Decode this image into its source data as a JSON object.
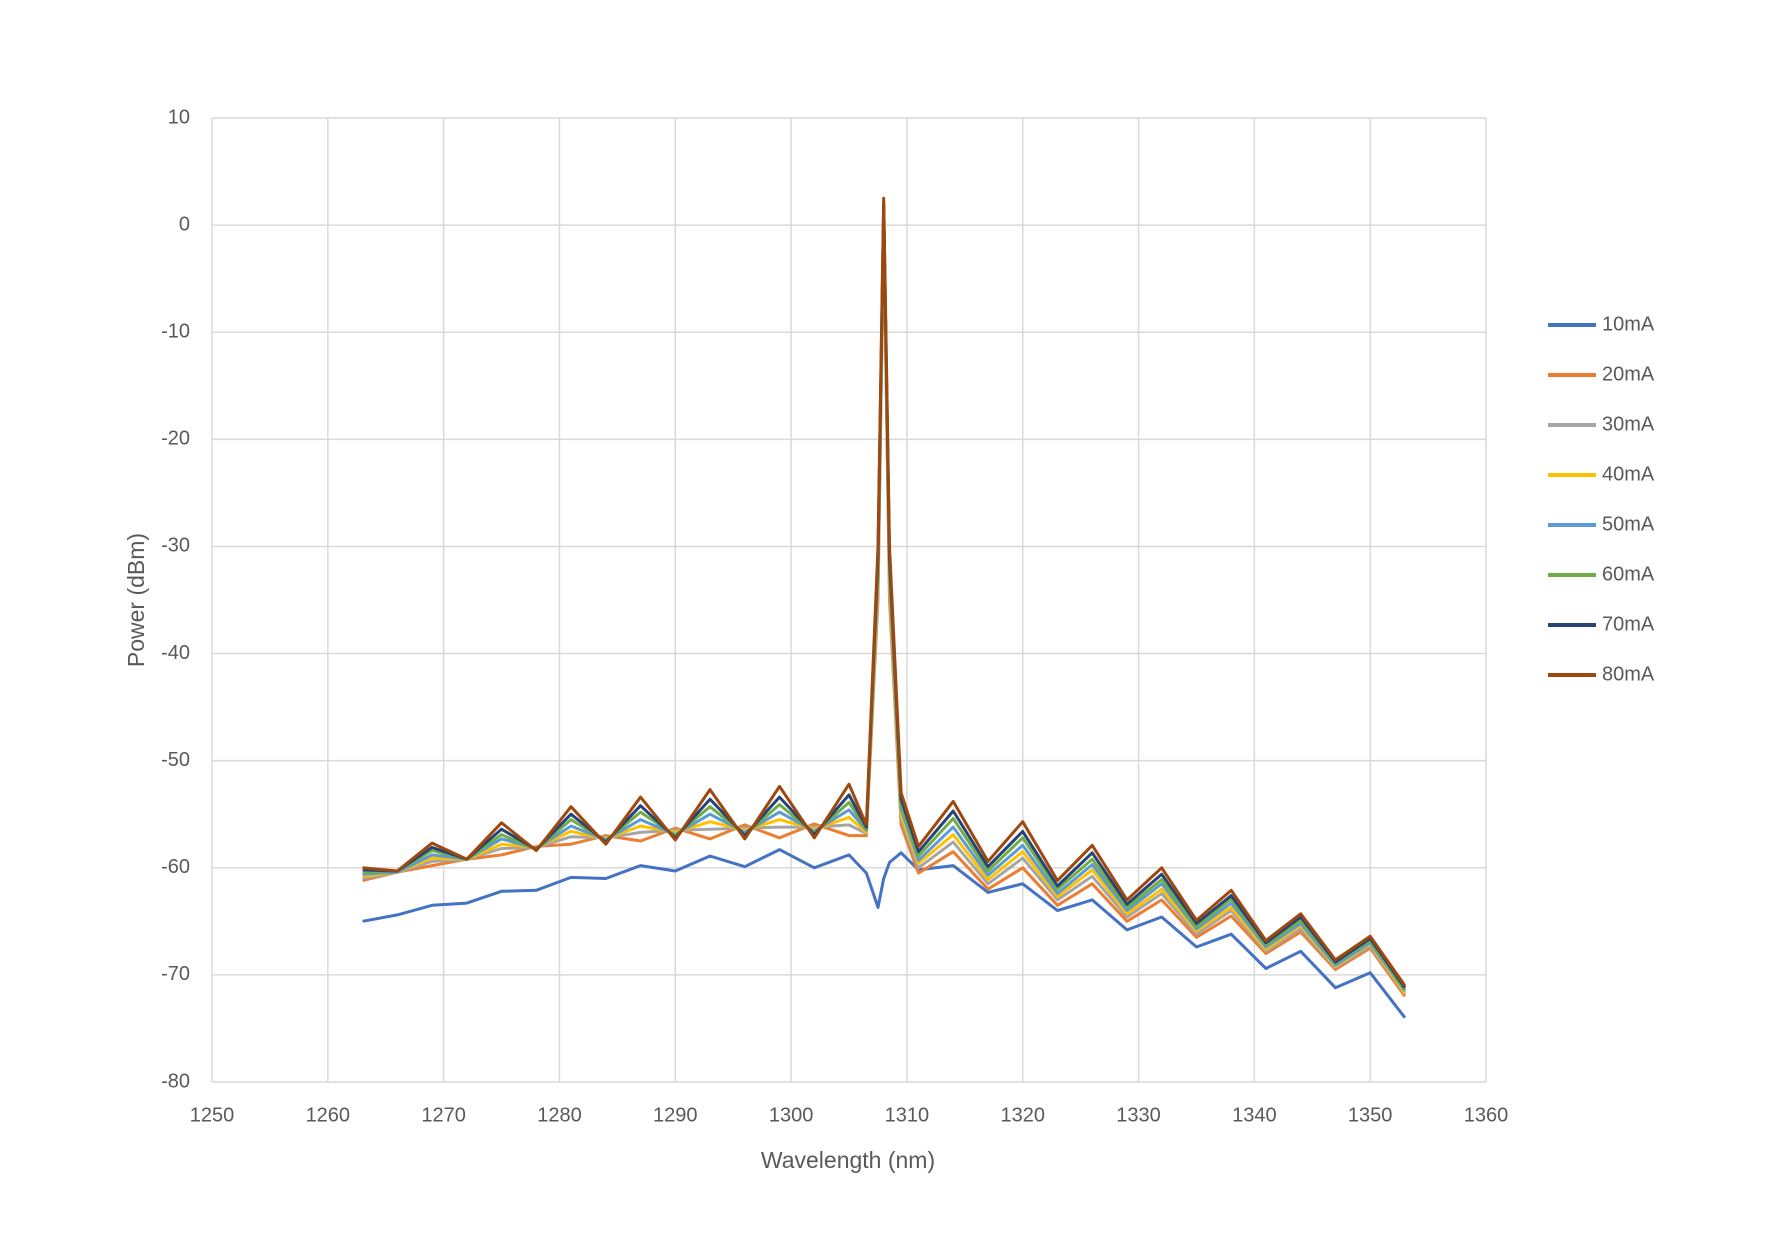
{
  "chart_data": {
    "type": "line",
    "x_label": "Wavelength (nm)",
    "y_label": "Power (dBm)",
    "x": [
      1263,
      1266,
      1269,
      1272,
      1275,
      1278,
      1281,
      1284,
      1287,
      1290,
      1293,
      1296,
      1299,
      1302,
      1305,
      1306.5,
      1307.5,
      1308,
      1308.5,
      1309.5,
      1311,
      1314,
      1317,
      1320,
      1323,
      1326,
      1329,
      1332,
      1335,
      1338,
      1341,
      1344,
      1347,
      1350,
      1353
    ],
    "series": [
      {
        "name": "10mA",
        "color": "#4472c4",
        "values": [
          -65,
          -64.4,
          -63.5,
          -63.3,
          -62.2,
          -62.1,
          -60.9,
          -61,
          -59.8,
          -60.3,
          -58.9,
          -59.9,
          -58.3,
          -60,
          -58.8,
          -60.5,
          -63.7,
          -61,
          -59.5,
          -58.6,
          -60.2,
          -59.8,
          -62.3,
          -61.5,
          -64,
          -63,
          -65.8,
          -64.6,
          -67.4,
          -66.2,
          -69.4,
          -67.8,
          -71.2,
          -69.8,
          -74
        ]
      },
      {
        "name": "20mA",
        "color": "#ed7d31",
        "values": [
          -61.2,
          -60.4,
          -59.8,
          -59.2,
          -58.8,
          -58,
          -57.8,
          -57,
          -57.5,
          -56.3,
          -57.3,
          -56,
          -57.2,
          -55.9,
          -57,
          -57,
          -35,
          0,
          -35,
          -56,
          -60.5,
          -58.5,
          -62,
          -60,
          -63.5,
          -61.5,
          -65,
          -63,
          -66.5,
          -64.5,
          -68,
          -66,
          -69.5,
          -67.5,
          -72
        ]
      },
      {
        "name": "30mA",
        "color": "#a5a5a5",
        "values": [
          -61,
          -60.4,
          -59.4,
          -59.2,
          -58.2,
          -58.1,
          -57.1,
          -57.2,
          -56.7,
          -56.5,
          -56.4,
          -56.3,
          -56.2,
          -56.2,
          -56,
          -56.8,
          -34,
          0.5,
          -34,
          -55.4,
          -60,
          -57.6,
          -61.5,
          -59.1,
          -63,
          -60.8,
          -64.6,
          -62.4,
          -66.2,
          -64,
          -67.8,
          -65.7,
          -69.3,
          -67.3,
          -71.8
        ]
      },
      {
        "name": "40mA",
        "color": "#ffc000",
        "values": [
          -60.8,
          -60.4,
          -59.1,
          -59.2,
          -57.8,
          -58.1,
          -56.6,
          -57.3,
          -56.1,
          -56.7,
          -55.7,
          -56.5,
          -55.5,
          -56.4,
          -55.3,
          -56.7,
          -33.3,
          0.9,
          -33.3,
          -55,
          -59.6,
          -56.9,
          -61.1,
          -58.5,
          -62.7,
          -60.2,
          -64.3,
          -62,
          -65.9,
          -63.7,
          -67.6,
          -65.4,
          -69.2,
          -67.1,
          -71.7
        ]
      },
      {
        "name": "50mA",
        "color": "#5b9bd5",
        "values": [
          -60.6,
          -60.4,
          -58.8,
          -59.2,
          -57.3,
          -58.2,
          -56.1,
          -57.4,
          -55.5,
          -56.9,
          -55,
          -56.7,
          -54.8,
          -56.6,
          -54.6,
          -56.5,
          -32.5,
          1.3,
          -32.5,
          -54.5,
          -59.3,
          -56.2,
          -60.7,
          -57.9,
          -62.4,
          -59.7,
          -64,
          -61.5,
          -65.7,
          -63.3,
          -67.4,
          -65.2,
          -69.1,
          -67,
          -71.5
        ]
      },
      {
        "name": "60mA",
        "color": "#70ad47",
        "values": [
          -60.4,
          -60.3,
          -58.4,
          -59.2,
          -56.9,
          -58.3,
          -55.5,
          -57.5,
          -54.8,
          -57,
          -54.3,
          -56.9,
          -54.1,
          -56.8,
          -53.9,
          -56.4,
          -31.8,
          1.6,
          -31.8,
          -54.1,
          -58.9,
          -55.4,
          -60.3,
          -57.2,
          -62,
          -59.2,
          -63.7,
          -61.1,
          -65.5,
          -62.9,
          -67.2,
          -64.9,
          -68.9,
          -66.8,
          -71.4
        ]
      },
      {
        "name": "70mA",
        "color": "#264478",
        "values": [
          -60.2,
          -60.3,
          -58.1,
          -59.2,
          -56.4,
          -58.3,
          -55,
          -57.6,
          -54.2,
          -57.2,
          -53.6,
          -57,
          -53.4,
          -56.9,
          -53.2,
          -56.2,
          -31,
          2,
          -31,
          -53.6,
          -58.5,
          -54.7,
          -59.9,
          -56.6,
          -61.7,
          -58.6,
          -63.4,
          -60.6,
          -65.2,
          -62.6,
          -67,
          -64.6,
          -68.8,
          -66.6,
          -71.2
        ]
      },
      {
        "name": "80mA",
        "color": "#9e480e",
        "values": [
          -60,
          -60.3,
          -57.7,
          -59.2,
          -55.8,
          -58.4,
          -54.3,
          -57.8,
          -53.4,
          -57.4,
          -52.7,
          -57.3,
          -52.4,
          -57.2,
          -52.2,
          -56,
          -30,
          2.5,
          -30,
          -53,
          -58,
          -53.8,
          -59.4,
          -55.7,
          -61.2,
          -57.9,
          -63,
          -60,
          -64.9,
          -62.1,
          -66.8,
          -64.3,
          -68.6,
          -66.4,
          -71
        ]
      }
    ],
    "xlim": [
      1250,
      1360
    ],
    "xticks": [
      1250,
      1260,
      1270,
      1280,
      1290,
      1300,
      1310,
      1320,
      1330,
      1340,
      1350,
      1360
    ],
    "ylim": [
      -80,
      10
    ],
    "yticks": [
      -80,
      -70,
      -60,
      -50,
      -40,
      -30,
      -20,
      -10,
      0,
      10
    ],
    "grid": true,
    "legend": "right"
  }
}
